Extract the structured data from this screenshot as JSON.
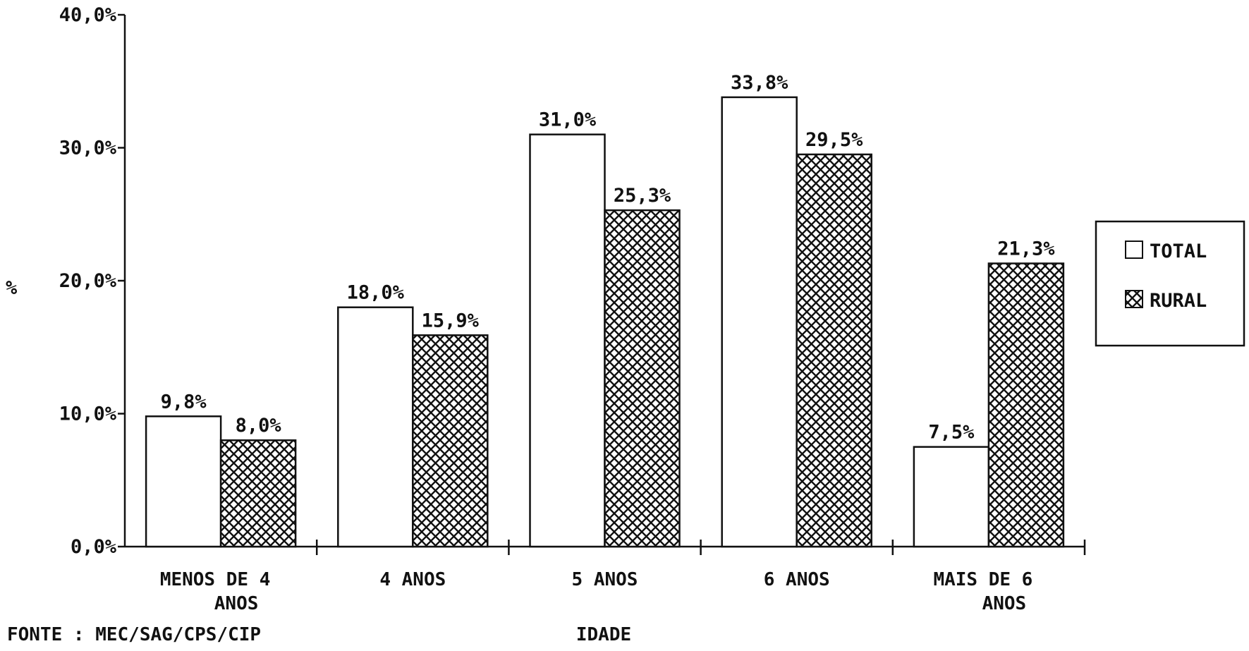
{
  "chart_data": {
    "type": "bar",
    "categories": [
      [
        "MENOS DE 4",
        "ANOS"
      ],
      [
        "4 ANOS"
      ],
      [
        "5 ANOS"
      ],
      [
        "6 ANOS"
      ],
      [
        "MAIS DE 6",
        "ANOS"
      ]
    ],
    "series": [
      {
        "name": "TOTAL",
        "values": [
          9.8,
          18.0,
          31.0,
          33.8,
          7.5
        ],
        "labels": [
          "9,8%",
          "18,0%",
          "31,0%",
          "33,8%",
          "7,5%"
        ],
        "fill": "plain"
      },
      {
        "name": "RURAL",
        "values": [
          8.0,
          15.9,
          25.3,
          29.5,
          21.3
        ],
        "labels": [
          "8,0%",
          "15,9%",
          "25,3%",
          "29,5%",
          "21,3%"
        ],
        "fill": "crosshatch"
      }
    ],
    "ylim": [
      0,
      40
    ],
    "yticks": [
      0,
      10,
      20,
      30,
      40
    ],
    "ytick_labels": [
      "0,0%",
      "10,0%",
      "20,0%",
      "30,0%",
      "40,0%"
    ],
    "ylabel": "%",
    "xlabel": "IDADE",
    "source": "FONTE : MEC/SAG/CPS/CIP",
    "legend_position": "right",
    "grid": false,
    "colors": {
      "ink": "#111111",
      "background": "#ffffff"
    }
  }
}
